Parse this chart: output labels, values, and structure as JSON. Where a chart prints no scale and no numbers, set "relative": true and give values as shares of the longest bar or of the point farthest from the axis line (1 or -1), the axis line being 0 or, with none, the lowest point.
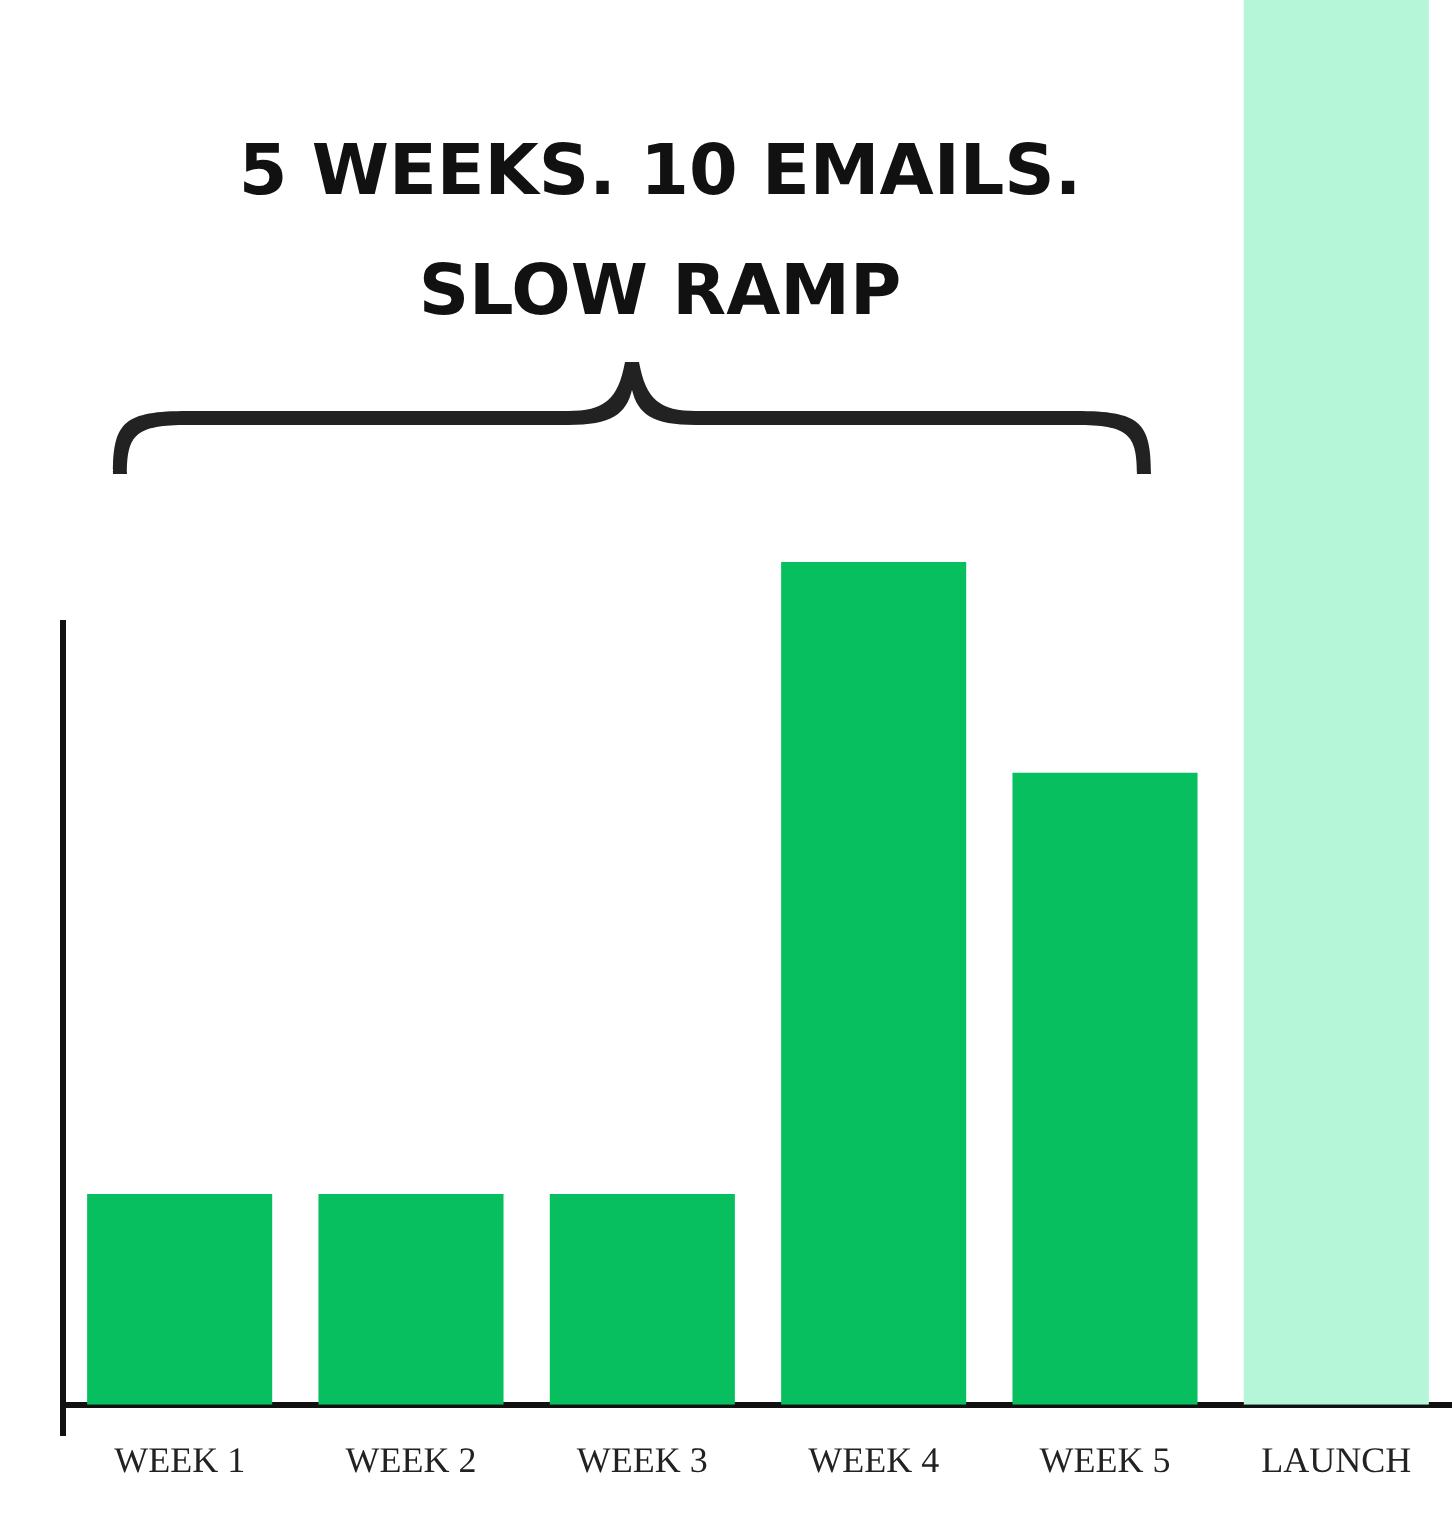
{
  "chart_data": {
    "type": "bar",
    "title": "5 WEEKS. 10 EMAILS. SLOW RAMP",
    "categories": [
      "WEEK 1",
      "WEEK 2",
      "WEEK 3",
      "WEEK 4",
      "WEEK 5",
      "LAUNCH"
    ],
    "values": [
      0.15,
      0.15,
      0.15,
      0.6,
      0.45,
      1
    ],
    "colors": [
      "#07bf5f",
      "#07bf5f",
      "#07bf5f",
      "#07bf5f",
      "#07bf5f",
      "#b5f5d8"
    ],
    "relative": true,
    "grid": false,
    "legend": false
  }
}
